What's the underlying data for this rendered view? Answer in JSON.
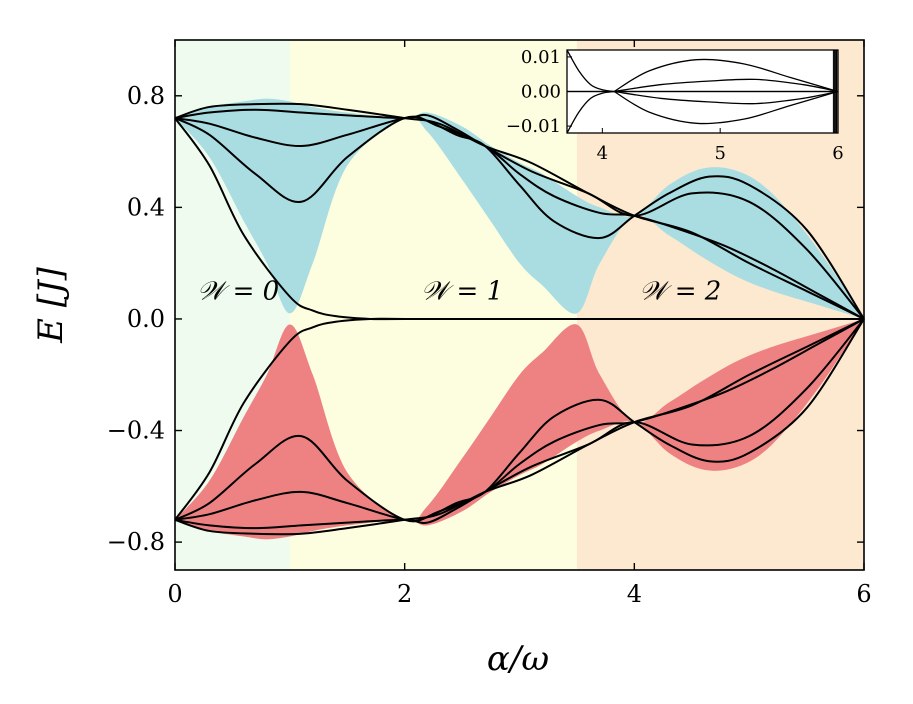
{
  "chart_data": {
    "type": "line",
    "xlabel": "α/ω",
    "ylabel": "E [J]",
    "xlim": [
      0,
      6
    ],
    "ylim": [
      -0.9,
      1.0
    ],
    "x_ticks": [
      0,
      2,
      4,
      6
    ],
    "x_tick_labels": [
      "0",
      "2",
      "4",
      "6"
    ],
    "y_ticks": [
      0.8,
      0.4,
      0.0,
      -0.4,
      -0.8
    ],
    "y_tick_labels": [
      "0.8",
      "0.4",
      "0.0",
      "−0.4",
      "−0.8"
    ],
    "regions": [
      {
        "label": "𝒲 = 0",
        "x_range": [
          0,
          1.0
        ],
        "color": "#eefbee"
      },
      {
        "label": "𝒲 = 1",
        "x_range": [
          1.0,
          3.5
        ],
        "color": "#fdfde0"
      },
      {
        "label": "𝒲 = 2",
        "x_range": [
          3.5,
          6.0
        ],
        "color": "#fde9cf"
      }
    ],
    "fill_colors": {
      "upper": "#a9dde2",
      "lower": "#ee8282"
    },
    "upper_band_envelope": {
      "x": [
        0,
        0.3,
        0.6,
        0.8,
        1.0,
        1.2,
        1.5,
        2.0,
        2.2,
        2.5,
        2.75,
        3.0,
        3.2,
        3.5,
        3.7,
        4.0,
        4.3,
        4.6,
        4.9,
        5.2,
        5.6,
        6.0
      ],
      "top": [
        0.72,
        0.76,
        0.78,
        0.79,
        0.78,
        0.76,
        0.74,
        0.72,
        0.74,
        0.69,
        0.62,
        0.56,
        0.52,
        0.44,
        0.4,
        0.37,
        0.48,
        0.54,
        0.53,
        0.45,
        0.25,
        0.0
      ],
      "bottom": [
        0.72,
        0.58,
        0.35,
        0.2,
        0.02,
        0.2,
        0.55,
        0.72,
        0.67,
        0.5,
        0.35,
        0.2,
        0.12,
        0.02,
        0.2,
        0.37,
        0.3,
        0.22,
        0.15,
        0.1,
        0.05,
        0.0
      ]
    },
    "lines": [
      {
        "x": [
          0,
          0.3,
          0.7,
          1.1,
          1.5,
          2.0,
          2.3,
          2.7,
          3.1,
          3.6,
          4.0,
          4.5,
          5.0,
          5.5,
          6.0
        ],
        "y": [
          0.72,
          0.76,
          0.77,
          0.77,
          0.75,
          0.72,
          0.7,
          0.62,
          0.56,
          0.45,
          0.37,
          0.31,
          0.2,
          0.1,
          0.0
        ]
      },
      {
        "x": [
          0,
          0.3,
          0.7,
          1.1,
          1.5,
          2.0,
          2.2,
          2.45,
          2.7,
          3.1,
          3.6,
          4.0,
          4.5,
          5.0,
          5.5,
          6.0
        ],
        "y": [
          0.72,
          0.74,
          0.75,
          0.74,
          0.73,
          0.72,
          0.73,
          0.68,
          0.62,
          0.53,
          0.45,
          0.37,
          0.45,
          0.42,
          0.25,
          0.0
        ]
      },
      {
        "x": [
          0,
          0.3,
          0.7,
          1.1,
          1.5,
          2.0,
          2.2,
          2.45,
          2.7,
          3.0,
          3.3,
          3.7,
          4.0,
          4.3,
          4.65,
          5.0,
          5.5,
          6.0
        ],
        "y": [
          0.72,
          0.7,
          0.65,
          0.62,
          0.66,
          0.72,
          0.71,
          0.66,
          0.62,
          0.48,
          0.35,
          0.29,
          0.37,
          0.45,
          0.51,
          0.48,
          0.32,
          0.0
        ]
      },
      {
        "x": [
          0,
          0.3,
          0.7,
          1.1,
          1.5,
          2.0,
          2.3,
          2.7,
          3.0,
          3.3,
          3.7,
          4.0,
          4.4,
          4.8,
          5.2,
          5.6,
          6.0
        ],
        "y": [
          0.72,
          0.66,
          0.52,
          0.42,
          0.58,
          0.72,
          0.69,
          0.62,
          0.52,
          0.44,
          0.38,
          0.37,
          0.32,
          0.26,
          0.18,
          0.09,
          0.0
        ]
      },
      {
        "x": [
          0,
          0.3,
          0.6,
          1.0,
          1.2,
          1.4,
          1.7,
          2.0,
          3.0,
          3.5,
          4.0,
          5.0,
          6.0
        ],
        "y": [
          0.72,
          0.55,
          0.3,
          0.08,
          0.03,
          0.01,
          0.0,
          0.0,
          0.0,
          0.0,
          0.0,
          0.0,
          0.0
        ]
      }
    ],
    "mirror_lower": true,
    "annotations": [
      "𝒲 = 0",
      "𝒲 = 1",
      "𝒲 = 2"
    ],
    "inset": {
      "xlim": [
        3.7,
        6.0
      ],
      "ylim": [
        -0.012,
        0.012
      ],
      "x_ticks": [
        4,
        5,
        6
      ],
      "x_tick_labels": [
        "4",
        "5",
        "6"
      ],
      "y_ticks": [
        0.01,
        0.0,
        -0.01
      ],
      "y_tick_labels": [
        "0.01",
        "0.00",
        "−0.01"
      ],
      "lines": [
        {
          "x": [
            3.7,
            3.8,
            3.9,
            4.0,
            4.1
          ],
          "y": [
            0.012,
            0.006,
            0.002,
            0.0005,
            0.0
          ]
        },
        {
          "x": [
            4.1,
            4.4,
            4.8,
            5.2,
            5.6,
            6.0
          ],
          "y": [
            0.0,
            0.006,
            0.0092,
            0.008,
            0.004,
            0.0
          ]
        },
        {
          "x": [
            4.1,
            4.5,
            4.9,
            5.3,
            5.7,
            6.0
          ],
          "y": [
            0.0,
            0.002,
            0.003,
            0.0035,
            0.002,
            0.0
          ]
        },
        {
          "x": [
            3.7,
            4.0,
            4.5,
            5.0,
            5.5,
            6.0
          ],
          "y": [
            0.0,
            0.0,
            0.0,
            0.0,
            0.0,
            0.0
          ]
        }
      ],
      "mirror_lower": true
    }
  }
}
